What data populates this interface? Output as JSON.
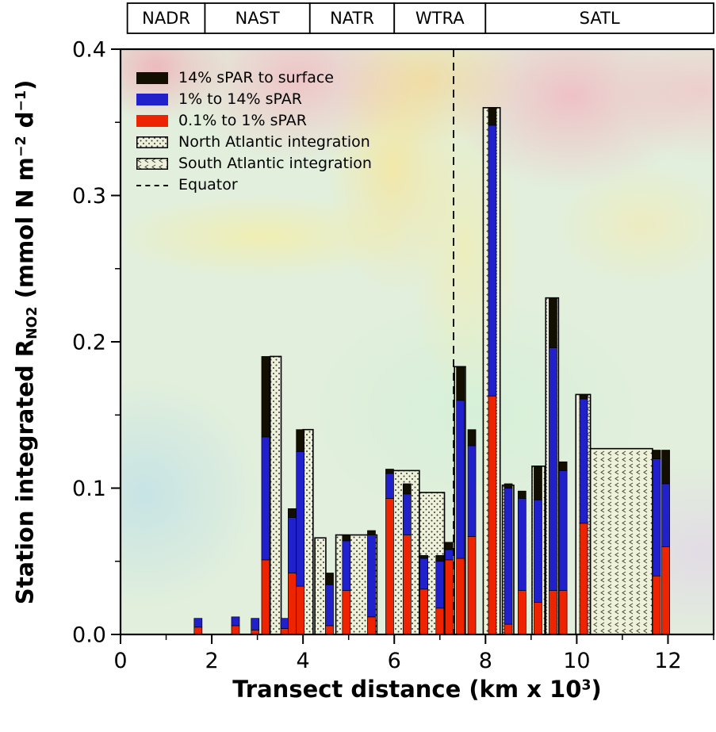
{
  "axes": {
    "y_tick_labels": [
      "0.0",
      "0.1",
      "0.2",
      "0.3",
      "0.4"
    ],
    "x_tick_labels": [
      "0",
      "2",
      "4",
      "6",
      "8",
      "10",
      "12"
    ],
    "ylabel_parts": {
      "main": "Station integrated R",
      "sub": "NO2",
      "mid": " (mmol N m",
      "sup1": "−2",
      "mid2": " d",
      "sup2": "−1",
      "end": ")"
    },
    "xlabel_parts": {
      "main": "Transect distance (km x 10",
      "sup": "3",
      "end": ")"
    }
  },
  "legend": {
    "items": [
      {
        "label": "14% sPAR to surface",
        "swatch": "solid-black"
      },
      {
        "label": "1% to 14% sPAR",
        "swatch": "solid-blue"
      },
      {
        "label": "0.1% to 1% sPAR",
        "swatch": "solid-red"
      },
      {
        "label": "North Atlantic integration",
        "swatch": "dots"
      },
      {
        "label": "South Atlantic integration",
        "swatch": "waves"
      },
      {
        "label": "Equator",
        "swatch": "dashed-line"
      }
    ]
  },
  "colors": {
    "surface_14": "#120e00",
    "par_1_14": "#2121cc",
    "par_01_1": "#ee2400",
    "integration_fill": "#edf0da",
    "pattern_ink": "#3a3a28",
    "frame": "#000000"
  },
  "chart_data": {
    "type": "bar",
    "title": "",
    "xlabel": "Transect distance (km x 10^3)",
    "ylabel": "Station integrated R_NO2 (mmol N m^-2 d^-1)",
    "xlim": [
      0,
      13
    ],
    "ylim": [
      0,
      0.4
    ],
    "x_major_ticks": [
      0,
      2,
      4,
      6,
      8,
      10,
      12
    ],
    "x_minor_ticks": [
      1,
      3,
      5,
      7,
      9,
      11,
      13
    ],
    "y_major_ticks": [
      0.0,
      0.1,
      0.2,
      0.3,
      0.4
    ],
    "y_minor_ticks": [
      0.05,
      0.15,
      0.25,
      0.35
    ],
    "grid": false,
    "legend_position": "upper-left",
    "equator_x": 7.3,
    "regions": [
      {
        "label": "NADR",
        "x0": 0.15,
        "x1": 1.85
      },
      {
        "label": "NAST",
        "x0": 1.85,
        "x1": 4.15
      },
      {
        "label": "NATR",
        "x0": 4.15,
        "x1": 6.0
      },
      {
        "label": "WTRA",
        "x0": 6.0,
        "x1": 8.0
      },
      {
        "label": "SATL",
        "x0": 8.0,
        "x1": 13.0
      }
    ],
    "stack_order_bottom_to_top": [
      "0.1% to 1% sPAR",
      "1% to 14% sPAR",
      "14% sPAR to surface"
    ],
    "stacked_bars": [
      {
        "x": 1.7,
        "red": 0.005,
        "blue": 0.006,
        "black": 0.0
      },
      {
        "x": 2.52,
        "red": 0.006,
        "blue": 0.006,
        "black": 0.0
      },
      {
        "x": 2.95,
        "red": 0.003,
        "blue": 0.008,
        "black": 0.0
      },
      {
        "x": 3.18,
        "red": 0.051,
        "blue": 0.084,
        "black": 0.055
      },
      {
        "x": 3.6,
        "red": 0.004,
        "blue": 0.007,
        "black": 0.0
      },
      {
        "x": 3.76,
        "red": 0.042,
        "blue": 0.038,
        "black": 0.006
      },
      {
        "x": 3.94,
        "red": 0.033,
        "blue": 0.092,
        "black": 0.015
      },
      {
        "x": 4.58,
        "red": 0.006,
        "blue": 0.028,
        "black": 0.008
      },
      {
        "x": 4.95,
        "red": 0.03,
        "blue": 0.034,
        "black": 0.004
      },
      {
        "x": 5.5,
        "red": 0.012,
        "blue": 0.056,
        "black": 0.003
      },
      {
        "x": 5.9,
        "red": 0.093,
        "blue": 0.017,
        "black": 0.003
      },
      {
        "x": 6.28,
        "red": 0.068,
        "blue": 0.028,
        "black": 0.007
      },
      {
        "x": 6.65,
        "red": 0.031,
        "blue": 0.021,
        "black": 0.002
      },
      {
        "x": 7.0,
        "red": 0.018,
        "blue": 0.032,
        "black": 0.004
      },
      {
        "x": 7.2,
        "red": 0.051,
        "blue": 0.007,
        "black": 0.005
      },
      {
        "x": 7.45,
        "red": 0.052,
        "blue": 0.108,
        "black": 0.023
      },
      {
        "x": 7.7,
        "red": 0.067,
        "blue": 0.062,
        "black": 0.011
      },
      {
        "x": 8.15,
        "red": 0.163,
        "blue": 0.185,
        "black": 0.012
      },
      {
        "x": 8.5,
        "red": 0.007,
        "blue": 0.093,
        "black": 0.003
      },
      {
        "x": 8.8,
        "red": 0.03,
        "blue": 0.063,
        "black": 0.005
      },
      {
        "x": 9.15,
        "red": 0.022,
        "blue": 0.07,
        "black": 0.023
      },
      {
        "x": 9.48,
        "red": 0.03,
        "blue": 0.166,
        "black": 0.034
      },
      {
        "x": 9.7,
        "red": 0.03,
        "blue": 0.082,
        "black": 0.006
      },
      {
        "x": 10.15,
        "red": 0.076,
        "blue": 0.085,
        "black": 0.003
      },
      {
        "x": 11.75,
        "red": 0.04,
        "blue": 0.08,
        "black": 0.006
      },
      {
        "x": 11.95,
        "red": 0.06,
        "blue": 0.043,
        "black": 0.023
      }
    ],
    "integration_bars": [
      {
        "x0": 3.28,
        "x1": 3.52,
        "height": 0.19,
        "region": "north"
      },
      {
        "x0": 4.0,
        "x1": 4.22,
        "height": 0.14,
        "region": "north"
      },
      {
        "x0": 4.26,
        "x1": 4.5,
        "height": 0.066,
        "region": "north"
      },
      {
        "x0": 4.72,
        "x1": 5.62,
        "height": 0.068,
        "region": "north"
      },
      {
        "x0": 5.85,
        "x1": 6.55,
        "height": 0.112,
        "region": "north"
      },
      {
        "x0": 6.55,
        "x1": 7.1,
        "height": 0.097,
        "region": "north"
      },
      {
        "x0": 7.32,
        "x1": 7.56,
        "height": 0.183,
        "region": "south"
      },
      {
        "x0": 7.95,
        "x1": 8.32,
        "height": 0.36,
        "region": "south"
      },
      {
        "x0": 8.37,
        "x1": 8.62,
        "height": 0.102,
        "region": "south"
      },
      {
        "x0": 9.02,
        "x1": 9.3,
        "height": 0.115,
        "region": "south"
      },
      {
        "x0": 9.32,
        "x1": 9.6,
        "height": 0.23,
        "region": "south"
      },
      {
        "x0": 9.98,
        "x1": 10.3,
        "height": 0.164,
        "region": "south"
      },
      {
        "x0": 10.3,
        "x1": 11.66,
        "height": 0.127,
        "region": "south"
      }
    ]
  }
}
